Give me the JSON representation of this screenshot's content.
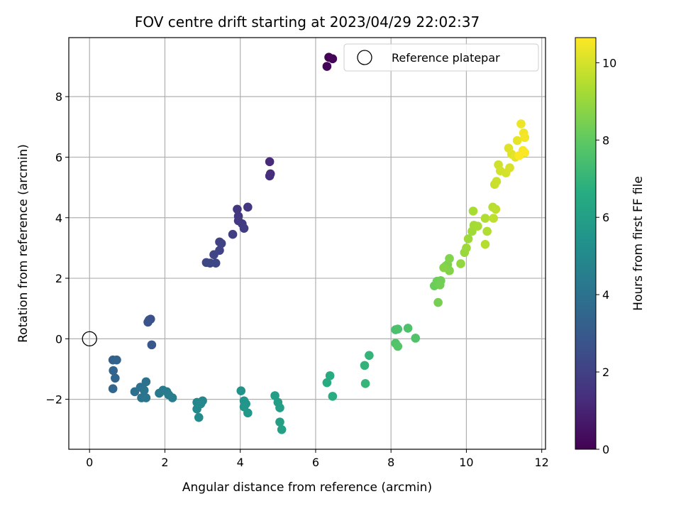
{
  "chart_data": {
    "type": "scatter",
    "title": "FOV centre drift starting at 2023/04/29 22:02:37",
    "xlabel": "Angular distance from reference (arcmin)",
    "ylabel": "Rotation from reference (arcmin)",
    "xlim": [
      -0.55,
      12.1
    ],
    "ylim": [
      -3.65,
      9.95
    ],
    "xticks": [
      0,
      2,
      4,
      6,
      8,
      10,
      12
    ],
    "yticks": [
      -2,
      0,
      2,
      4,
      6,
      8
    ],
    "grid": true,
    "colormap": "viridis",
    "colorbar": {
      "label": "Hours from first FF file",
      "range": [
        0,
        10.65
      ],
      "ticks": [
        0,
        2,
        4,
        6,
        8,
        10
      ]
    },
    "legend": {
      "placement": "top-right",
      "entries": [
        {
          "label": "Reference platepar",
          "marker": "open-circle",
          "color": "#000000"
        }
      ]
    },
    "reference_point": {
      "x": 0,
      "y": 0
    },
    "points": [
      {
        "x": 6.35,
        "y": 9.3,
        "c": 0.05
      },
      {
        "x": 6.45,
        "y": 9.25,
        "c": 0.1
      },
      {
        "x": 6.3,
        "y": 9.0,
        "c": 0.15
      },
      {
        "x": 4.78,
        "y": 5.85,
        "c": 1.2
      },
      {
        "x": 4.8,
        "y": 5.45,
        "c": 1.25
      },
      {
        "x": 4.78,
        "y": 5.38,
        "c": 1.3
      },
      {
        "x": 4.2,
        "y": 4.35,
        "c": 1.6
      },
      {
        "x": 3.92,
        "y": 4.28,
        "c": 1.65
      },
      {
        "x": 3.95,
        "y": 4.05,
        "c": 1.7
      },
      {
        "x": 3.95,
        "y": 3.9,
        "c": 1.75
      },
      {
        "x": 4.05,
        "y": 3.8,
        "c": 1.8
      },
      {
        "x": 4.1,
        "y": 3.65,
        "c": 1.85
      },
      {
        "x": 3.8,
        "y": 3.45,
        "c": 1.9
      },
      {
        "x": 3.45,
        "y": 3.2,
        "c": 2.0
      },
      {
        "x": 3.5,
        "y": 3.15,
        "c": 2.05
      },
      {
        "x": 3.45,
        "y": 2.92,
        "c": 2.1
      },
      {
        "x": 3.3,
        "y": 2.78,
        "c": 2.15
      },
      {
        "x": 3.2,
        "y": 2.5,
        "c": 2.2
      },
      {
        "x": 3.35,
        "y": 2.5,
        "c": 2.25
      },
      {
        "x": 3.1,
        "y": 2.52,
        "c": 2.3
      },
      {
        "x": 1.62,
        "y": 0.65,
        "c": 2.6
      },
      {
        "x": 1.58,
        "y": 0.62,
        "c": 2.65
      },
      {
        "x": 1.55,
        "y": 0.55,
        "c": 2.7
      },
      {
        "x": 1.65,
        "y": -0.2,
        "c": 2.9
      },
      {
        "x": 0.62,
        "y": -0.7,
        "c": 3.3
      },
      {
        "x": 0.72,
        "y": -0.7,
        "c": 3.35
      },
      {
        "x": 0.63,
        "y": -1.05,
        "c": 3.4
      },
      {
        "x": 0.68,
        "y": -1.3,
        "c": 3.45
      },
      {
        "x": 0.62,
        "y": -1.65,
        "c": 3.5
      },
      {
        "x": 1.2,
        "y": -1.75,
        "c": 3.9
      },
      {
        "x": 1.35,
        "y": -1.6,
        "c": 3.95
      },
      {
        "x": 1.5,
        "y": -1.42,
        "c": 4.0
      },
      {
        "x": 1.45,
        "y": -1.7,
        "c": 4.05
      },
      {
        "x": 1.38,
        "y": -1.95,
        "c": 4.1
      },
      {
        "x": 1.5,
        "y": -1.95,
        "c": 4.15
      },
      {
        "x": 1.85,
        "y": -1.8,
        "c": 4.3
      },
      {
        "x": 1.95,
        "y": -1.7,
        "c": 4.35
      },
      {
        "x": 2.05,
        "y": -1.75,
        "c": 4.4
      },
      {
        "x": 2.1,
        "y": -1.85,
        "c": 4.45
      },
      {
        "x": 2.2,
        "y": -1.95,
        "c": 4.5
      },
      {
        "x": 2.85,
        "y": -2.1,
        "c": 4.85
      },
      {
        "x": 3.0,
        "y": -2.05,
        "c": 4.9
      },
      {
        "x": 2.95,
        "y": -2.15,
        "c": 4.95
      },
      {
        "x": 2.85,
        "y": -2.32,
        "c": 5.0
      },
      {
        "x": 2.9,
        "y": -2.6,
        "c": 5.05
      },
      {
        "x": 4.02,
        "y": -1.72,
        "c": 5.4
      },
      {
        "x": 4.1,
        "y": -2.05,
        "c": 5.45
      },
      {
        "x": 4.15,
        "y": -2.15,
        "c": 5.5
      },
      {
        "x": 4.1,
        "y": -2.25,
        "c": 5.55
      },
      {
        "x": 4.2,
        "y": -2.45,
        "c": 5.6
      },
      {
        "x": 4.92,
        "y": -1.88,
        "c": 5.85
      },
      {
        "x": 5.0,
        "y": -2.1,
        "c": 5.9
      },
      {
        "x": 5.05,
        "y": -2.28,
        "c": 5.95
      },
      {
        "x": 5.05,
        "y": -2.75,
        "c": 6.0
      },
      {
        "x": 5.1,
        "y": -3.0,
        "c": 6.05
      },
      {
        "x": 6.38,
        "y": -1.22,
        "c": 6.55
      },
      {
        "x": 6.3,
        "y": -1.45,
        "c": 6.6
      },
      {
        "x": 6.45,
        "y": -1.9,
        "c": 6.65
      },
      {
        "x": 7.3,
        "y": -0.88,
        "c": 6.95
      },
      {
        "x": 7.42,
        "y": -0.55,
        "c": 7.0
      },
      {
        "x": 7.32,
        "y": -1.48,
        "c": 7.05
      },
      {
        "x": 8.12,
        "y": 0.3,
        "c": 7.5
      },
      {
        "x": 8.18,
        "y": 0.32,
        "c": 7.55
      },
      {
        "x": 8.45,
        "y": 0.35,
        "c": 7.6
      },
      {
        "x": 8.65,
        "y": 0.02,
        "c": 7.65
      },
      {
        "x": 8.12,
        "y": -0.15,
        "c": 7.7
      },
      {
        "x": 8.18,
        "y": -0.25,
        "c": 7.75
      },
      {
        "x": 9.15,
        "y": 1.75,
        "c": 8.2
      },
      {
        "x": 9.22,
        "y": 1.9,
        "c": 8.25
      },
      {
        "x": 9.32,
        "y": 1.92,
        "c": 8.3
      },
      {
        "x": 9.3,
        "y": 1.78,
        "c": 8.35
      },
      {
        "x": 9.25,
        "y": 1.2,
        "c": 8.4
      },
      {
        "x": 9.45,
        "y": 2.4,
        "c": 8.5
      },
      {
        "x": 9.5,
        "y": 2.45,
        "c": 8.55
      },
      {
        "x": 9.55,
        "y": 2.65,
        "c": 8.6
      },
      {
        "x": 9.55,
        "y": 2.25,
        "c": 8.65
      },
      {
        "x": 9.4,
        "y": 2.35,
        "c": 8.7
      },
      {
        "x": 9.85,
        "y": 2.48,
        "c": 8.9
      },
      {
        "x": 9.95,
        "y": 2.85,
        "c": 9.0
      },
      {
        "x": 10.0,
        "y": 3.0,
        "c": 9.05
      },
      {
        "x": 10.05,
        "y": 3.3,
        "c": 9.1
      },
      {
        "x": 10.15,
        "y": 3.55,
        "c": 9.15
      },
      {
        "x": 10.2,
        "y": 3.75,
        "c": 9.2
      },
      {
        "x": 10.3,
        "y": 3.72,
        "c": 9.25
      },
      {
        "x": 10.18,
        "y": 4.22,
        "c": 9.3
      },
      {
        "x": 10.5,
        "y": 3.98,
        "c": 9.4
      },
      {
        "x": 10.55,
        "y": 3.55,
        "c": 9.45
      },
      {
        "x": 10.5,
        "y": 3.12,
        "c": 9.5
      },
      {
        "x": 10.7,
        "y": 4.35,
        "c": 9.55
      },
      {
        "x": 10.78,
        "y": 4.28,
        "c": 9.6
      },
      {
        "x": 10.72,
        "y": 3.98,
        "c": 9.65
      },
      {
        "x": 10.75,
        "y": 5.1,
        "c": 9.8
      },
      {
        "x": 10.8,
        "y": 5.2,
        "c": 9.85
      },
      {
        "x": 10.85,
        "y": 5.75,
        "c": 9.9
      },
      {
        "x": 10.9,
        "y": 5.55,
        "c": 9.95
      },
      {
        "x": 11.05,
        "y": 5.48,
        "c": 10.0
      },
      {
        "x": 11.15,
        "y": 5.65,
        "c": 10.05
      },
      {
        "x": 11.12,
        "y": 6.3,
        "c": 10.15
      },
      {
        "x": 11.2,
        "y": 6.1,
        "c": 10.2
      },
      {
        "x": 11.3,
        "y": 6.0,
        "c": 10.25
      },
      {
        "x": 11.35,
        "y": 6.55,
        "c": 10.3
      },
      {
        "x": 11.45,
        "y": 7.1,
        "c": 10.4
      },
      {
        "x": 11.52,
        "y": 6.8,
        "c": 10.45
      },
      {
        "x": 11.55,
        "y": 6.65,
        "c": 10.5
      },
      {
        "x": 11.5,
        "y": 6.22,
        "c": 10.55
      },
      {
        "x": 11.55,
        "y": 6.15,
        "c": 10.6
      },
      {
        "x": 11.4,
        "y": 6.05,
        "c": 10.62
      }
    ]
  }
}
